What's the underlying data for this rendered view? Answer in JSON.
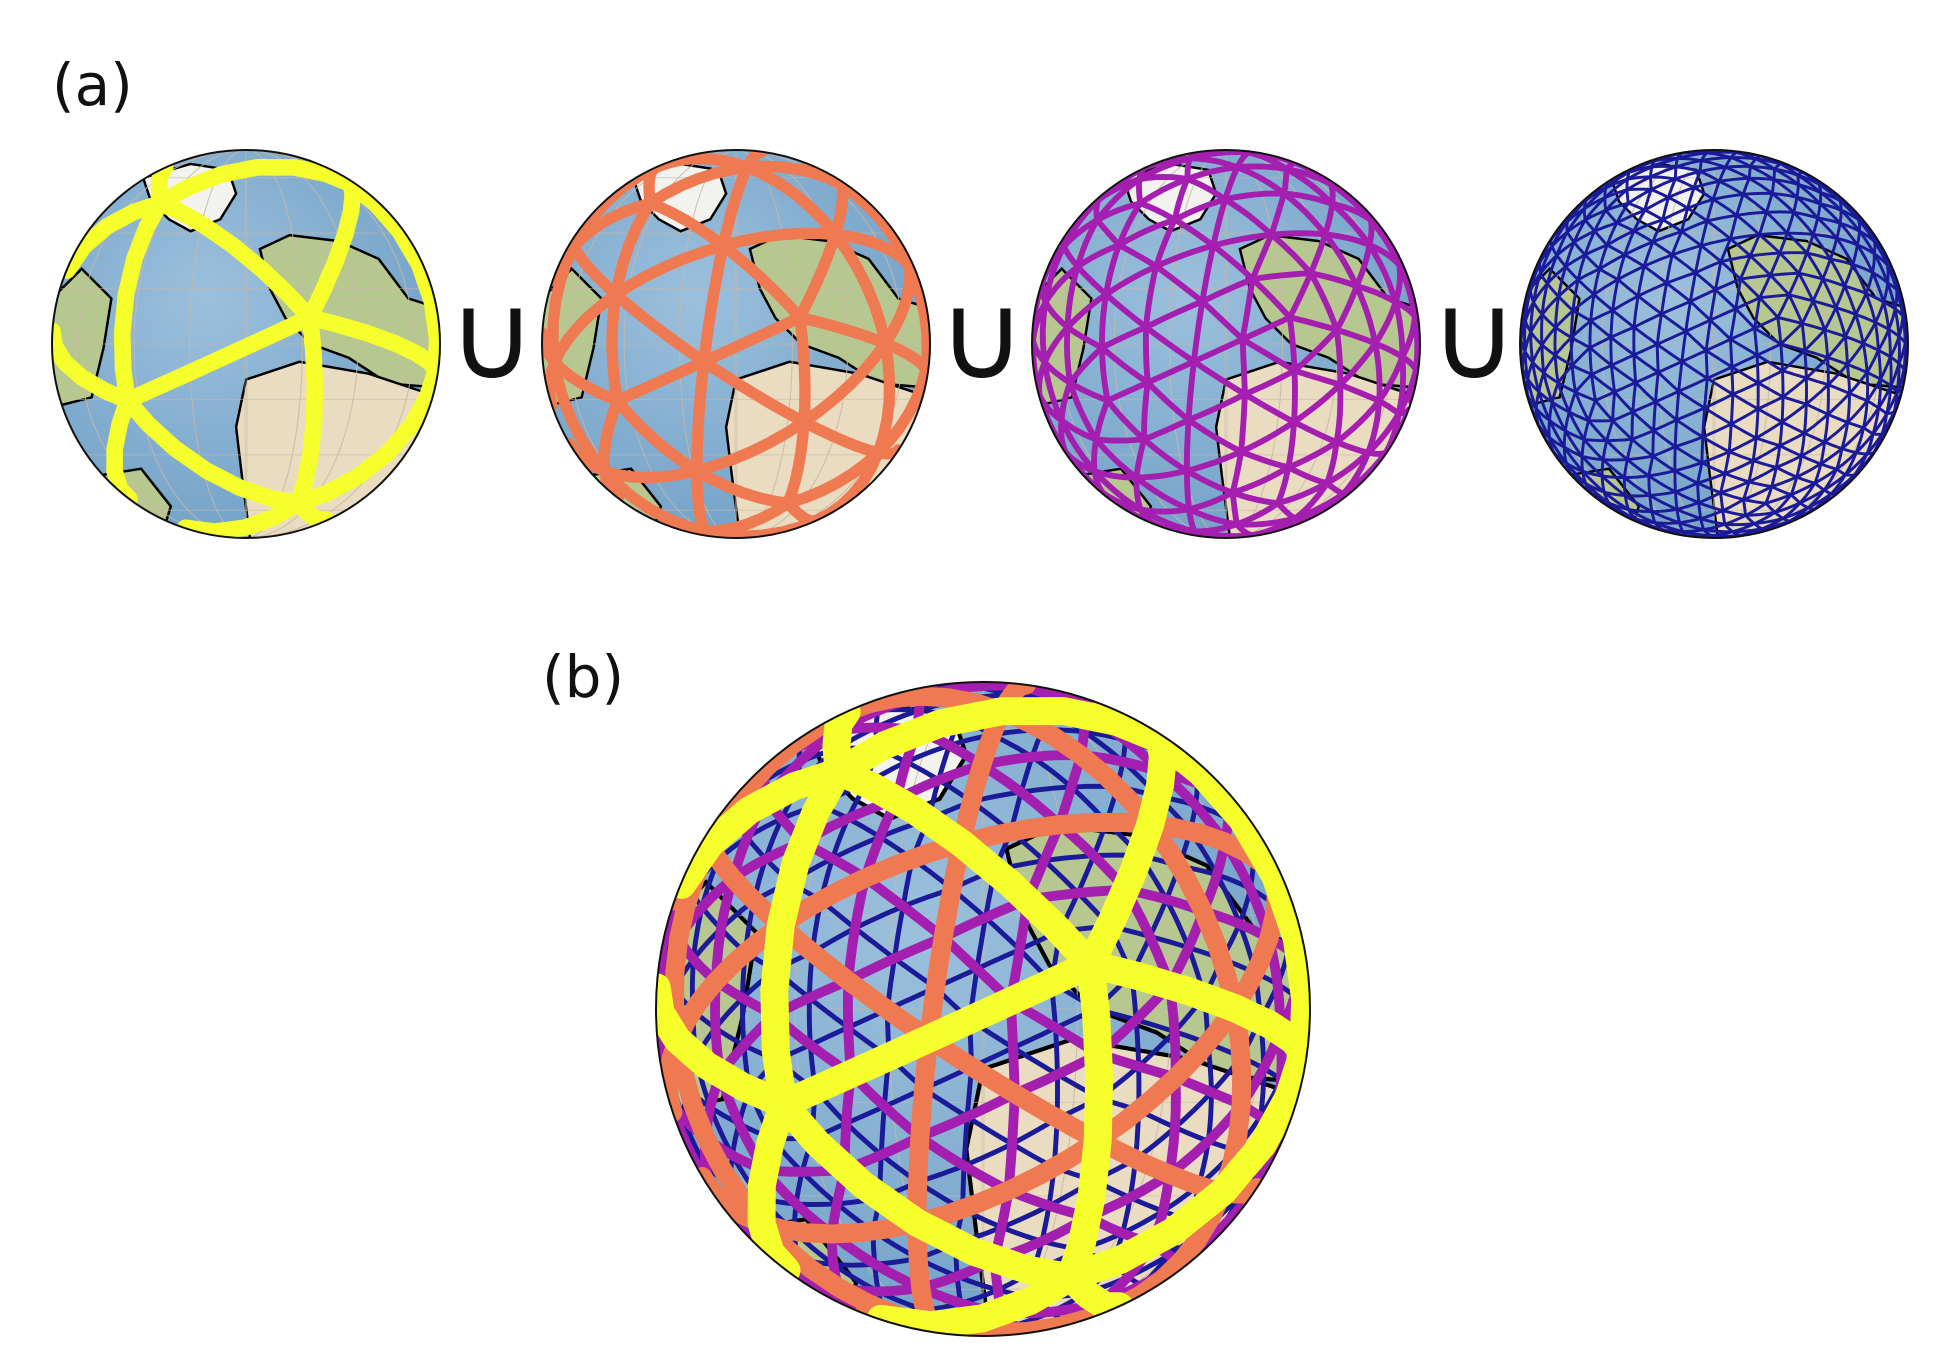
{
  "labels": {
    "a": "(a)",
    "b": "(b)"
  },
  "union_symbol": "∪",
  "colors": {
    "ocean": "#6f9fc6",
    "ocean_light": "#9cc0dc",
    "land": "#e9dcc0",
    "land_green": "#b7c790",
    "coast": "#000000",
    "level0": "#f6ff2c",
    "level1": "#ef7a52",
    "level2": "#a41fb0",
    "level3": "#1b1b9a"
  },
  "mesh_levels": [
    {
      "level": 0,
      "color": "#f6ff2c"
    },
    {
      "level": 1,
      "color": "#ef7a52"
    },
    {
      "level": 2,
      "color": "#a41fb0"
    },
    {
      "level": 3,
      "color": "#1b1b9a"
    }
  ]
}
